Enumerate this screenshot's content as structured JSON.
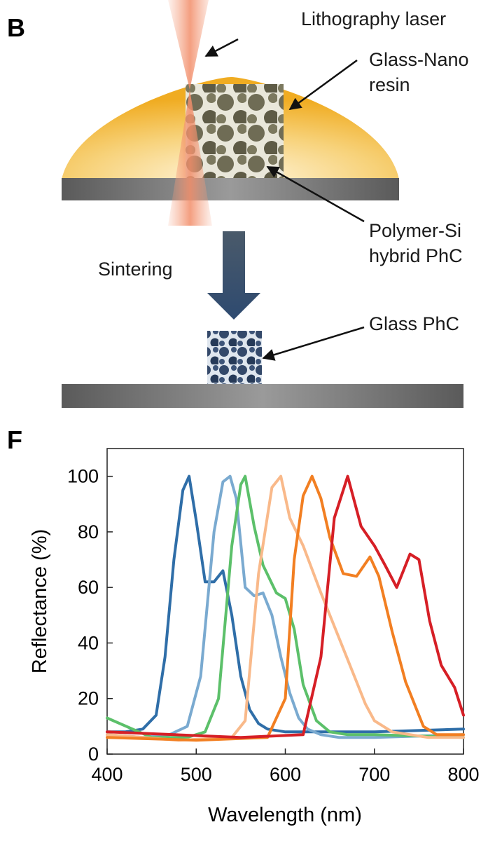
{
  "panel_b": {
    "label": "B",
    "annotations": {
      "laser": "Lithography laser",
      "resin_line1": "Glass-Nano",
      "resin_line2": "resin",
      "hybrid_line1": "Polymer-Si",
      "hybrid_line2": "hybrid PhC",
      "sintering": "Sintering",
      "glass_phc": "Glass PhC"
    },
    "colors": {
      "resin": "#f2b632",
      "substrate": "#6b6b6b",
      "laser": "#f4a080",
      "hybrid_phc": "#6d6a52",
      "glass_phc": "#2e4460",
      "arrow": "#3d4f66"
    }
  },
  "panel_f": {
    "label": "F"
  },
  "chart_data": {
    "type": "line",
    "title": "",
    "xlabel": "Wavelength (nm)",
    "ylabel": "Reflectance (%)",
    "xlim": [
      400,
      800
    ],
    "ylim": [
      0,
      110
    ],
    "x_ticks": [
      400,
      500,
      600,
      700,
      800
    ],
    "y_ticks": [
      0,
      20,
      40,
      60,
      80,
      100
    ],
    "grid": false,
    "legend": "none",
    "series": [
      {
        "color": "#2f6ea8",
        "x": [
          400,
          420,
          440,
          455,
          465,
          475,
          485,
          492,
          500,
          510,
          520,
          530,
          540,
          550,
          560,
          570,
          580,
          600,
          650,
          700,
          800
        ],
        "y": [
          8,
          8,
          9,
          14,
          35,
          70,
          95,
          100,
          84,
          62,
          62,
          66,
          50,
          28,
          16,
          11,
          9,
          8,
          8,
          8,
          9
        ]
      },
      {
        "color": "#7aaad0",
        "x": [
          400,
          440,
          470,
          490,
          505,
          520,
          530,
          538,
          545,
          555,
          565,
          575,
          585,
          595,
          605,
          615,
          625,
          640,
          660,
          700,
          800
        ],
        "y": [
          7,
          6,
          7,
          10,
          28,
          80,
          98,
          100,
          92,
          60,
          57,
          58,
          50,
          35,
          22,
          13,
          9,
          7,
          6,
          6,
          7
        ]
      },
      {
        "color": "#5cc06a",
        "x": [
          400,
          450,
          490,
          510,
          525,
          540,
          550,
          555,
          565,
          575,
          590,
          600,
          610,
          620,
          635,
          650,
          670,
          700,
          800
        ],
        "y": [
          13,
          6,
          6,
          8,
          20,
          75,
          97,
          100,
          82,
          68,
          58,
          56,
          45,
          25,
          12,
          8,
          7,
          7,
          6
        ]
      },
      {
        "color": "#f9b98a",
        "x": [
          400,
          480,
          540,
          555,
          570,
          585,
          595,
          605,
          620,
          640,
          660,
          680,
          690,
          700,
          720,
          760,
          800
        ],
        "y": [
          7,
          5,
          6,
          12,
          65,
          96,
          100,
          85,
          75,
          58,
          42,
          26,
          18,
          12,
          8,
          6,
          6
        ]
      },
      {
        "color": "#f27f22",
        "x": [
          400,
          500,
          580,
          600,
          610,
          620,
          630,
          640,
          650,
          665,
          680,
          695,
          705,
          720,
          735,
          755,
          770,
          800
        ],
        "y": [
          6,
          5,
          6,
          20,
          70,
          93,
          100,
          92,
          78,
          65,
          64,
          71,
          64,
          44,
          26,
          10,
          7,
          7
        ]
      },
      {
        "color": "#d61f26",
        "x": [
          400,
          550,
          620,
          640,
          655,
          670,
          685,
          700,
          712,
          725,
          740,
          750,
          762,
          775,
          790,
          800
        ],
        "y": [
          8,
          6,
          7,
          35,
          85,
          100,
          82,
          75,
          68,
          60,
          72,
          70,
          48,
          32,
          24,
          14
        ]
      }
    ]
  }
}
